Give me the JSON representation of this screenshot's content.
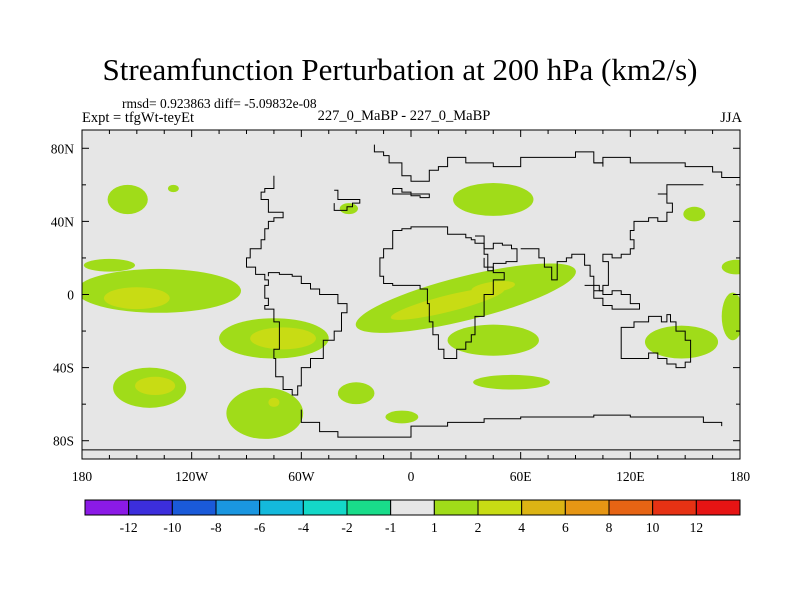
{
  "chart_data": {
    "type": "heatmap",
    "title": "Streamfunction Perturbation at 200 hPa (km2/s)",
    "stats_line": "rmsd= 0.923863 diff= -5.09832e-08",
    "left_label": "Expt = tfgWt-teyEt",
    "center_label": "227_0_MaBP - 227_0_MaBP",
    "right_label": "JJA",
    "x_range": [
      -180,
      180
    ],
    "y_range": [
      -90,
      90
    ],
    "x_ticks": [
      {
        "value": -180,
        "label": "180"
      },
      {
        "value": -120,
        "label": "120W"
      },
      {
        "value": -60,
        "label": "60W"
      },
      {
        "value": 0,
        "label": "0"
      },
      {
        "value": 60,
        "label": "60E"
      },
      {
        "value": 120,
        "label": "120E"
      },
      {
        "value": 180,
        "label": "180"
      }
    ],
    "y_ticks": [
      {
        "value": 80,
        "label": "80N"
      },
      {
        "value": 40,
        "label": "40N"
      },
      {
        "value": 0,
        "label": "0"
      },
      {
        "value": -40,
        "label": "40S"
      },
      {
        "value": -80,
        "label": "80S"
      }
    ],
    "colorbar": {
      "colors": [
        "#8b1ae6",
        "#3c2edc",
        "#1a5ad9",
        "#1a96e0",
        "#14b9dc",
        "#14d8c8",
        "#19dc8a",
        "#e6e6e6",
        "#a0dc19",
        "#c8dc14",
        "#dcb414",
        "#e69614",
        "#e66414",
        "#e63214",
        "#e61414"
      ],
      "labels": [
        "-12",
        "-10",
        "-8",
        "-6",
        "-4",
        "-2",
        "-1",
        "1",
        "2",
        "4",
        "6",
        "8",
        "10",
        "12"
      ]
    },
    "background_color": "#e6e6e6",
    "anomalies": [
      {
        "lon": -155,
        "lat": 52,
        "rx": 11,
        "ry": 8,
        "level": 1,
        "angle": 0
      },
      {
        "lon": -130,
        "lat": 58,
        "rx": 3,
        "ry": 2,
        "level": 1,
        "angle": 0
      },
      {
        "lon": -165,
        "lat": 16,
        "rx": 14,
        "ry": 3.5,
        "level": 1,
        "angle": 0
      },
      {
        "lon": -138,
        "lat": 2,
        "rx": 45,
        "ry": 12,
        "level": 1,
        "angle": 0
      },
      {
        "lon": -150,
        "lat": -2,
        "rx": 18,
        "ry": 6,
        "level": 2,
        "angle": 0
      },
      {
        "lon": -75,
        "lat": -24,
        "rx": 30,
        "ry": 11,
        "level": 1,
        "angle": 0
      },
      {
        "lon": -70,
        "lat": -24,
        "rx": 18,
        "ry": 6,
        "level": 2,
        "angle": 0
      },
      {
        "lon": -34,
        "lat": 47,
        "rx": 5,
        "ry": 3,
        "level": 1,
        "angle": 0
      },
      {
        "lon": 30,
        "lat": -2,
        "rx": 62,
        "ry": 12,
        "level": 1,
        "angle": -14
      },
      {
        "lon": 20,
        "lat": -5,
        "rx": 32,
        "ry": 4.5,
        "level": 2,
        "angle": -14
      },
      {
        "lon": 45,
        "lat": 4,
        "rx": 12,
        "ry": 3,
        "level": 2,
        "angle": -8
      },
      {
        "lon": 45,
        "lat": 52,
        "rx": 22,
        "ry": 9,
        "level": 1,
        "angle": 0
      },
      {
        "lon": 155,
        "lat": 44,
        "rx": 6,
        "ry": 4,
        "level": 1,
        "angle": 0
      },
      {
        "lon": 178,
        "lat": 15,
        "rx": 8,
        "ry": 4,
        "level": 1,
        "angle": 0
      },
      {
        "lon": 176,
        "lat": -12,
        "rx": 6,
        "ry": 13,
        "level": 1,
        "angle": 0
      },
      {
        "lon": 45,
        "lat": -25,
        "rx": 25,
        "ry": 8.5,
        "level": 1,
        "angle": 0
      },
      {
        "lon": 148,
        "lat": -26,
        "rx": 20,
        "ry": 9,
        "level": 1,
        "angle": 0
      },
      {
        "lon": 55,
        "lat": -48,
        "rx": 21,
        "ry": 4,
        "level": 1,
        "angle": 0
      },
      {
        "lon": -30,
        "lat": -54,
        "rx": 10,
        "ry": 6,
        "level": 1,
        "angle": 0
      },
      {
        "lon": -5,
        "lat": -67,
        "rx": 9,
        "ry": 3.5,
        "level": 1,
        "angle": 0
      },
      {
        "lon": -143,
        "lat": -51,
        "rx": 20,
        "ry": 11,
        "level": 1,
        "angle": 0
      },
      {
        "lon": -140,
        "lat": -50,
        "rx": 11,
        "ry": 5,
        "level": 2,
        "angle": 0
      },
      {
        "lon": -80,
        "lat": -65,
        "rx": 21,
        "ry": 14,
        "level": 1,
        "angle": 0
      },
      {
        "lon": -75,
        "lat": -59,
        "rx": 3,
        "ry": 2.5,
        "level": 2,
        "angle": 0
      }
    ],
    "coastlines": [
      [
        [
          -20,
          82
        ],
        [
          -20,
          78
        ],
        [
          -15,
          76
        ],
        [
          -12,
          72
        ],
        [
          -5,
          72
        ],
        [
          -5,
          65
        ],
        [
          0,
          62
        ],
        [
          5,
          62
        ],
        [
          10,
          68
        ],
        [
          15,
          70
        ],
        [
          20,
          75
        ],
        [
          30,
          72
        ],
        [
          45,
          70
        ],
        [
          60,
          75
        ],
        [
          75,
          75
        ],
        [
          90,
          78
        ],
        [
          100,
          72
        ],
        [
          105,
          70
        ]
      ],
      [
        [
          100,
          72
        ],
        [
          105,
          75
        ],
        [
          120,
          72
        ],
        [
          130,
          72
        ],
        [
          140,
          72
        ],
        [
          150,
          70
        ],
        [
          165,
          67
        ],
        [
          170,
          64
        ],
        [
          180,
          65
        ]
      ],
      [
        [
          -75,
          65
        ],
        [
          -75,
          58
        ],
        [
          -80,
          56
        ],
        [
          -82,
          52
        ],
        [
          -78,
          45
        ],
        [
          -70,
          42
        ],
        [
          -75,
          40
        ],
        [
          -78,
          36
        ],
        [
          -80,
          30
        ],
        [
          -82,
          25
        ],
        [
          -88,
          20
        ],
        [
          -90,
          15
        ],
        [
          -85,
          11
        ],
        [
          -80,
          8
        ],
        [
          -78,
          5
        ],
        [
          -80,
          -2
        ],
        [
          -78,
          -6
        ],
        [
          -80,
          -8
        ],
        [
          -75,
          -15
        ],
        [
          -72,
          -20
        ],
        [
          -72,
          -30
        ],
        [
          -75,
          -35
        ],
        [
          -74,
          -45
        ],
        [
          -70,
          -52
        ],
        [
          -65,
          -55
        ],
        [
          -62,
          -50
        ],
        [
          -60,
          -40
        ],
        [
          -55,
          -35
        ],
        [
          -48,
          -25
        ],
        [
          -42,
          -20
        ],
        [
          -38,
          -10
        ],
        [
          -35,
          -5
        ],
        [
          -40,
          0
        ],
        [
          -50,
          3
        ],
        [
          -55,
          6
        ],
        [
          -60,
          10
        ],
        [
          -65,
          11
        ],
        [
          -72,
          12
        ],
        [
          -78,
          10
        ]
      ],
      [
        [
          -42,
          57
        ],
        [
          -40,
          52
        ],
        [
          -30,
          52
        ],
        [
          -28,
          50
        ],
        [
          -32,
          48
        ],
        [
          -35,
          46
        ],
        [
          -40,
          46
        ],
        [
          -42,
          50
        ]
      ],
      [
        [
          -10,
          58
        ],
        [
          -5,
          56
        ],
        [
          0,
          54
        ],
        [
          5,
          53
        ],
        [
          10,
          55
        ],
        [
          -10,
          58
        ]
      ],
      [
        [
          -10,
          35
        ],
        [
          -5,
          36
        ],
        [
          0,
          37
        ],
        [
          10,
          37
        ],
        [
          20,
          33
        ],
        [
          30,
          31
        ],
        [
          33,
          30
        ],
        [
          35,
          28
        ],
        [
          40,
          22
        ],
        [
          42,
          15
        ],
        [
          45,
          12
        ],
        [
          50,
          12
        ],
        [
          51,
          8
        ],
        [
          45,
          0
        ],
        [
          40,
          -5
        ],
        [
          40,
          -12
        ],
        [
          35,
          -22
        ],
        [
          33,
          -26
        ],
        [
          30,
          -30
        ],
        [
          25,
          -35
        ],
        [
          20,
          -35
        ],
        [
          18,
          -30
        ],
        [
          15,
          -22
        ],
        [
          12,
          -15
        ],
        [
          10,
          -5
        ],
        [
          9,
          3
        ],
        [
          5,
          5
        ],
        [
          0,
          5
        ],
        [
          -5,
          5
        ],
        [
          -10,
          6
        ],
        [
          -15,
          10
        ],
        [
          -17,
          15
        ],
        [
          -17,
          20
        ],
        [
          -15,
          25
        ],
        [
          -10,
          30
        ],
        [
          -10,
          35
        ]
      ],
      [
        [
          35,
          32
        ],
        [
          40,
          25
        ],
        [
          45,
          28
        ],
        [
          50,
          27
        ],
        [
          55,
          25
        ],
        [
          58,
          22
        ],
        [
          58,
          18
        ],
        [
          52,
          17
        ],
        [
          45,
          13
        ],
        [
          42,
          15
        ],
        [
          40,
          20
        ]
      ],
      [
        [
          60,
          25
        ],
        [
          65,
          25
        ],
        [
          70,
          20
        ],
        [
          73,
          15
        ],
        [
          77,
          8
        ],
        [
          80,
          12
        ],
        [
          80,
          18
        ],
        [
          85,
          20
        ],
        [
          88,
          22
        ],
        [
          92,
          22
        ],
        [
          95,
          16
        ],
        [
          98,
          10
        ],
        [
          100,
          5
        ],
        [
          103,
          2
        ],
        [
          105,
          5
        ],
        [
          108,
          10
        ],
        [
          108,
          18
        ],
        [
          105,
          22
        ],
        [
          110,
          20
        ],
        [
          115,
          22
        ],
        [
          120,
          25
        ],
        [
          122,
          30
        ],
        [
          120,
          35
        ],
        [
          122,
          40
        ],
        [
          130,
          42
        ],
        [
          135,
          40
        ],
        [
          140,
          45
        ],
        [
          143,
          50
        ],
        [
          140,
          55
        ],
        [
          135,
          55
        ],
        [
          140,
          60
        ],
        [
          150,
          60
        ],
        [
          160,
          60
        ]
      ],
      [
        [
          95,
          5
        ],
        [
          100,
          -2
        ],
        [
          105,
          -6
        ],
        [
          110,
          -8
        ],
        [
          115,
          -8
        ],
        [
          120,
          -8
        ],
        [
          125,
          -5
        ],
        [
          120,
          0
        ],
        [
          115,
          2
        ],
        [
          110,
          0
        ],
        [
          105,
          2
        ],
        [
          100,
          2
        ]
      ],
      [
        [
          115,
          -22
        ],
        [
          115,
          -35
        ],
        [
          120,
          -35
        ],
        [
          130,
          -32
        ],
        [
          135,
          -35
        ],
        [
          140,
          -38
        ],
        [
          145,
          -40
        ],
        [
          150,
          -37
        ],
        [
          153,
          -30
        ],
        [
          153,
          -25
        ],
        [
          150,
          -20
        ],
        [
          145,
          -15
        ],
        [
          142,
          -11
        ],
        [
          140,
          -15
        ],
        [
          137,
          -12
        ],
        [
          132,
          -12
        ],
        [
          130,
          -15
        ],
        [
          125,
          -15
        ],
        [
          122,
          -18
        ],
        [
          115,
          -22
        ]
      ],
      [
        [
          -60,
          -63
        ],
        [
          -60,
          -70
        ],
        [
          -50,
          -75
        ],
        [
          -40,
          -78
        ],
        [
          -20,
          -78
        ],
        [
          0,
          -72
        ],
        [
          20,
          -70
        ],
        [
          40,
          -68
        ],
        [
          60,
          -67
        ],
        [
          80,
          -67
        ],
        [
          100,
          -66
        ],
        [
          120,
          -67
        ],
        [
          140,
          -67
        ],
        [
          160,
          -70
        ],
        [
          170,
          -72
        ]
      ],
      [
        [
          -180,
          -85
        ],
        [
          180,
          -85
        ]
      ]
    ]
  }
}
